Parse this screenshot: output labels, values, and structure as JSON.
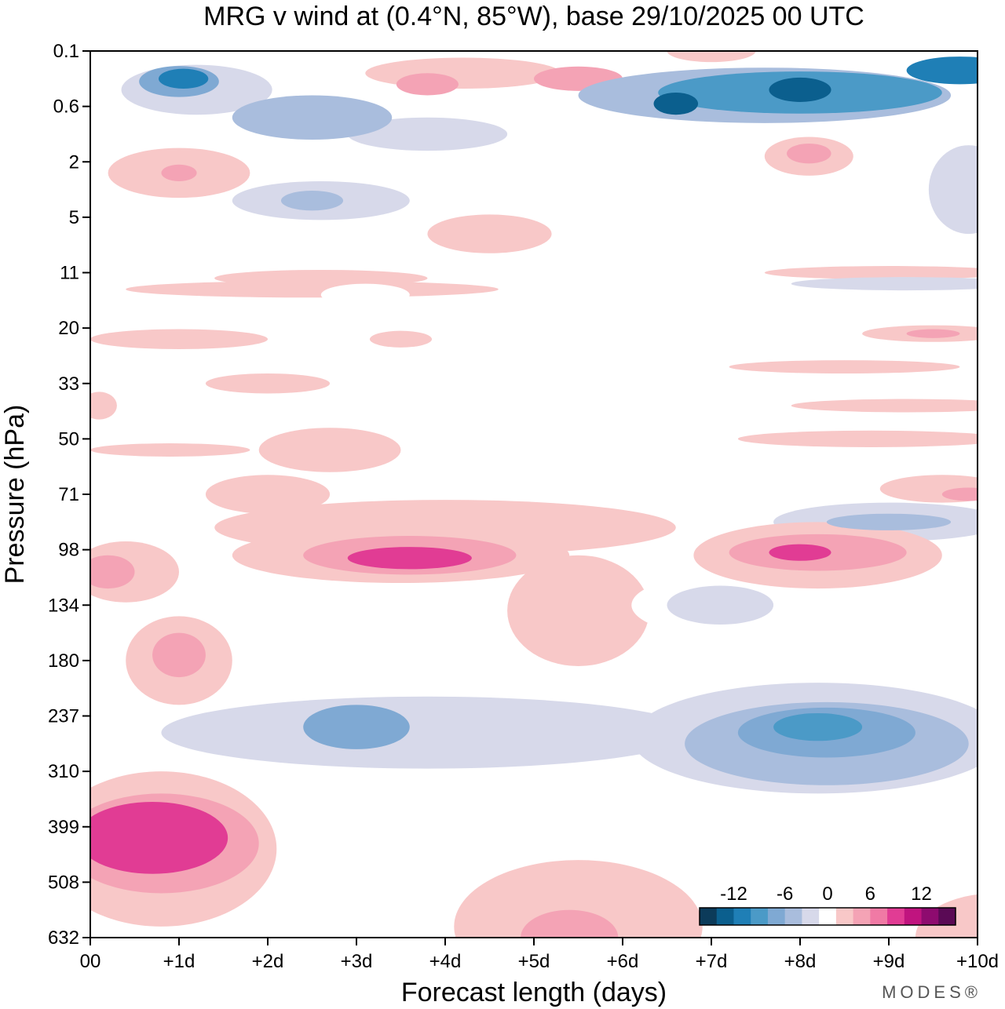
{
  "chart_data": {
    "type": "heatmap",
    "title": "MRG v wind at (0.4°N, 85°W),  base 29/10/2025  00 UTC",
    "xlabel": "Forecast length (days)",
    "ylabel": "Pressure (hPa)",
    "x_ticks": [
      {
        "value": 0,
        "label": "00"
      },
      {
        "value": 1,
        "label": "+1d"
      },
      {
        "value": 2,
        "label": "+2d"
      },
      {
        "value": 3,
        "label": "+3d"
      },
      {
        "value": 4,
        "label": "+4d"
      },
      {
        "value": 5,
        "label": "+5d"
      },
      {
        "value": 6,
        "label": "+6d"
      },
      {
        "value": 7,
        "label": "+7d"
      },
      {
        "value": 8,
        "label": "+8d"
      },
      {
        "value": 9,
        "label": "+9d"
      },
      {
        "value": 10,
        "label": "+10d"
      }
    ],
    "xlim": [
      0,
      10
    ],
    "y_ticks": [
      "0.1",
      "0.6",
      "2",
      "5",
      "11",
      "20",
      "33",
      "50",
      "71",
      "98",
      "134",
      "180",
      "237",
      "310",
      "399",
      "508",
      "632"
    ],
    "y_axis": "pressure level index, top to bottom",
    "colorbar": {
      "levels": [
        -16,
        -14,
        -12,
        -10,
        -8,
        -6,
        -4,
        -2,
        2,
        4,
        6,
        8,
        10,
        12,
        14,
        16
      ],
      "labels": [
        {
          "value": -12,
          "text": "-12"
        },
        {
          "value": -6,
          "text": "-6"
        },
        {
          "value": 0,
          "text": "0"
        },
        {
          "value": 6,
          "text": "6"
        },
        {
          "value": 12,
          "text": "12"
        }
      ],
      "colors": [
        "#0c3b5a",
        "#0b5f8e",
        "#1f7fb6",
        "#4b9ac7",
        "#7fa9d3",
        "#a9bddd",
        "#d7d9ea",
        "#ffffff",
        "#f8c8c8",
        "#f4a3b5",
        "#f07aa5",
        "#e13c94",
        "#c0147f",
        "#8e0b6f",
        "#5a0a55"
      ]
    },
    "blobs": [
      {
        "x": 1.2,
        "y": 0.7,
        "rx": 0.85,
        "ry": 0.45,
        "v": -3
      },
      {
        "x": 1.0,
        "y": 0.55,
        "rx": 0.45,
        "ry": 0.28,
        "v": -7
      },
      {
        "x": 1.05,
        "y": 0.5,
        "rx": 0.28,
        "ry": 0.18,
        "v": -11
      },
      {
        "x": 2.5,
        "y": 1.2,
        "rx": 0.9,
        "ry": 0.4,
        "v": -5
      },
      {
        "x": 3.8,
        "y": 1.5,
        "rx": 0.9,
        "ry": 0.3,
        "v": -4
      },
      {
        "x": 0.1,
        "y": 1.1,
        "rx": 0.15,
        "ry": 0.25,
        "v": -2
      },
      {
        "x": 4.2,
        "y": 0.4,
        "rx": 1.1,
        "ry": 0.28,
        "v": 3
      },
      {
        "x": 5.5,
        "y": 0.5,
        "rx": 0.5,
        "ry": 0.22,
        "v": 5
      },
      {
        "x": 3.8,
        "y": 0.6,
        "rx": 0.35,
        "ry": 0.2,
        "v": 5
      },
      {
        "x": 7.6,
        "y": 0.8,
        "rx": 2.1,
        "ry": 0.5,
        "v": -5
      },
      {
        "x": 8.0,
        "y": 0.75,
        "rx": 1.6,
        "ry": 0.38,
        "v": -9
      },
      {
        "x": 8.0,
        "y": 0.7,
        "rx": 0.35,
        "ry": 0.22,
        "v": -13
      },
      {
        "x": 6.6,
        "y": 0.95,
        "rx": 0.25,
        "ry": 0.2,
        "v": -13
      },
      {
        "x": 9.8,
        "y": 0.35,
        "rx": 0.6,
        "ry": 0.25,
        "v": -11
      },
      {
        "x": 7.0,
        "y": 0.0,
        "rx": 0.5,
        "ry": 0.2,
        "v": 3
      },
      {
        "x": 1.0,
        "y": 2.2,
        "rx": 0.8,
        "ry": 0.45,
        "v": 3
      },
      {
        "x": 1.0,
        "y": 2.2,
        "rx": 0.2,
        "ry": 0.15,
        "v": 5
      },
      {
        "x": 8.1,
        "y": 1.9,
        "rx": 0.5,
        "ry": 0.35,
        "v": 3
      },
      {
        "x": 8.1,
        "y": 1.85,
        "rx": 0.25,
        "ry": 0.18,
        "v": 5
      },
      {
        "x": 9.9,
        "y": 2.5,
        "rx": 0.45,
        "ry": 0.8,
        "v": -3
      },
      {
        "x": 2.6,
        "y": 2.7,
        "rx": 1.0,
        "ry": 0.35,
        "v": -3
      },
      {
        "x": 2.5,
        "y": 2.7,
        "rx": 0.35,
        "ry": 0.18,
        "v": -5
      },
      {
        "x": 4.5,
        "y": 3.3,
        "rx": 0.7,
        "ry": 0.35,
        "v": 3
      },
      {
        "x": 1.0,
        "y": 3.9,
        "rx": 1.0,
        "ry": 0.22,
        "v": -2
      },
      {
        "x": 2.6,
        "y": 4.1,
        "rx": 1.2,
        "ry": 0.15,
        "v": 2
      },
      {
        "x": 6.2,
        "y": 3.9,
        "rx": 1.5,
        "ry": 0.12,
        "v": -2
      },
      {
        "x": 9.0,
        "y": 4.0,
        "rx": 1.4,
        "ry": 0.12,
        "v": 2
      },
      {
        "x": 9.2,
        "y": 4.2,
        "rx": 1.3,
        "ry": 0.12,
        "v": -3
      },
      {
        "x": 2.5,
        "y": 4.3,
        "rx": 2.1,
        "ry": 0.15,
        "v": 2
      },
      {
        "x": 3.1,
        "y": 4.4,
        "rx": 0.5,
        "ry": 0.2,
        "v": -2
      },
      {
        "x": 5.6,
        "y": 4.4,
        "rx": 0.9,
        "ry": 0.15,
        "v": -2
      },
      {
        "x": 8.3,
        "y": 4.4,
        "rx": 0.7,
        "ry": 0.12,
        "v": -2
      },
      {
        "x": 0.5,
        "y": 4.8,
        "rx": 0.3,
        "ry": 0.15,
        "v": -2
      },
      {
        "x": 5.3,
        "y": 5.1,
        "rx": 1.2,
        "ry": 0.3,
        "v": -2
      },
      {
        "x": 1.0,
        "y": 5.2,
        "rx": 1.0,
        "ry": 0.18,
        "v": 2
      },
      {
        "x": 3.5,
        "y": 5.2,
        "rx": 0.35,
        "ry": 0.15,
        "v": 2
      },
      {
        "x": 9.5,
        "y": 5.1,
        "rx": 0.8,
        "ry": 0.15,
        "v": 2
      },
      {
        "x": 9.5,
        "y": 5.1,
        "rx": 0.3,
        "ry": 0.08,
        "v": 4
      },
      {
        "x": 8.0,
        "y": 4.9,
        "rx": 0.7,
        "ry": 0.15,
        "v": -2
      },
      {
        "x": 8.5,
        "y": 5.7,
        "rx": 1.3,
        "ry": 0.12,
        "v": 2
      },
      {
        "x": 2.0,
        "y": 6.0,
        "rx": 0.7,
        "ry": 0.18,
        "v": 3
      },
      {
        "x": 0.1,
        "y": 6.4,
        "rx": 0.2,
        "ry": 0.25,
        "v": 2
      },
      {
        "x": 9.2,
        "y": 6.4,
        "rx": 1.3,
        "ry": 0.12,
        "v": 2
      },
      {
        "x": 0.9,
        "y": 7.2,
        "rx": 0.9,
        "ry": 0.12,
        "v": 2
      },
      {
        "x": 2.7,
        "y": 7.2,
        "rx": 0.8,
        "ry": 0.4,
        "v": 3
      },
      {
        "x": 8.8,
        "y": 7.0,
        "rx": 1.5,
        "ry": 0.15,
        "v": 2
      },
      {
        "x": 4.0,
        "y": 8.6,
        "rx": 2.6,
        "ry": 0.5,
        "v": 2
      },
      {
        "x": 2.0,
        "y": 8.0,
        "rx": 0.7,
        "ry": 0.35,
        "v": 2
      },
      {
        "x": 9.6,
        "y": 7.9,
        "rx": 0.7,
        "ry": 0.25,
        "v": 3
      },
      {
        "x": 9.9,
        "y": 8.0,
        "rx": 0.3,
        "ry": 0.12,
        "v": 5
      },
      {
        "x": 9.0,
        "y": 8.5,
        "rx": 1.3,
        "ry": 0.35,
        "v": -3
      },
      {
        "x": 9.0,
        "y": 8.5,
        "rx": 0.7,
        "ry": 0.15,
        "v": -5
      },
      {
        "x": 3.5,
        "y": 9.1,
        "rx": 1.9,
        "ry": 0.5,
        "v": 3
      },
      {
        "x": 3.6,
        "y": 9.1,
        "rx": 1.2,
        "ry": 0.35,
        "v": 5
      },
      {
        "x": 3.6,
        "y": 9.15,
        "rx": 0.7,
        "ry": 0.2,
        "v": 8
      },
      {
        "x": 5.5,
        "y": 10.1,
        "rx": 0.8,
        "ry": 1.0,
        "v": 2
      },
      {
        "x": 8.2,
        "y": 9.1,
        "rx": 1.4,
        "ry": 0.6,
        "v": 3
      },
      {
        "x": 8.2,
        "y": 9.05,
        "rx": 1.0,
        "ry": 0.33,
        "v": 5
      },
      {
        "x": 8.0,
        "y": 9.05,
        "rx": 0.35,
        "ry": 0.15,
        "v": 8
      },
      {
        "x": 0.4,
        "y": 9.4,
        "rx": 0.6,
        "ry": 0.55,
        "v": 3
      },
      {
        "x": 0.2,
        "y": 9.4,
        "rx": 0.3,
        "ry": 0.3,
        "v": 5
      },
      {
        "x": 7.3,
        "y": 10.0,
        "rx": 1.2,
        "ry": 0.6,
        "v": -2
      },
      {
        "x": 7.1,
        "y": 10.0,
        "rx": 0.6,
        "ry": 0.35,
        "v": -4
      },
      {
        "x": 1.0,
        "y": 11.0,
        "rx": 0.6,
        "ry": 0.8,
        "v": 3
      },
      {
        "x": 1.0,
        "y": 10.9,
        "rx": 0.3,
        "ry": 0.4,
        "v": 5
      },
      {
        "x": 3.9,
        "y": 12.3,
        "rx": 3.4,
        "ry": 0.95,
        "v": -2
      },
      {
        "x": 3.8,
        "y": 12.3,
        "rx": 3.0,
        "ry": 0.65,
        "v": -4
      },
      {
        "x": 3.0,
        "y": 12.2,
        "rx": 0.6,
        "ry": 0.4,
        "v": -7
      },
      {
        "x": 8.2,
        "y": 12.4,
        "rx": 2.1,
        "ry": 1.0,
        "v": -3
      },
      {
        "x": 8.3,
        "y": 12.5,
        "rx": 1.6,
        "ry": 0.75,
        "v": -5
      },
      {
        "x": 8.3,
        "y": 12.3,
        "rx": 1.0,
        "ry": 0.45,
        "v": -7
      },
      {
        "x": 8.2,
        "y": 12.2,
        "rx": 0.5,
        "ry": 0.25,
        "v": -10
      },
      {
        "x": 8.0,
        "y": 14.2,
        "rx": 0.6,
        "ry": 1.0,
        "v": -2
      },
      {
        "x": 0.8,
        "y": 14.4,
        "rx": 1.3,
        "ry": 1.4,
        "v": 3
      },
      {
        "x": 0.8,
        "y": 14.3,
        "rx": 1.1,
        "ry": 0.9,
        "v": 5
      },
      {
        "x": 0.7,
        "y": 14.2,
        "rx": 0.85,
        "ry": 0.65,
        "v": 8
      },
      {
        "x": 5.5,
        "y": 15.8,
        "rx": 1.4,
        "ry": 1.2,
        "v": 2
      },
      {
        "x": 5.4,
        "y": 16.0,
        "rx": 0.55,
        "ry": 0.5,
        "v": 4
      },
      {
        "x": 10.2,
        "y": 16.0,
        "rx": 0.9,
        "ry": 0.8,
        "v": 2
      }
    ]
  },
  "branding": {
    "logo_text": "MODES®"
  }
}
